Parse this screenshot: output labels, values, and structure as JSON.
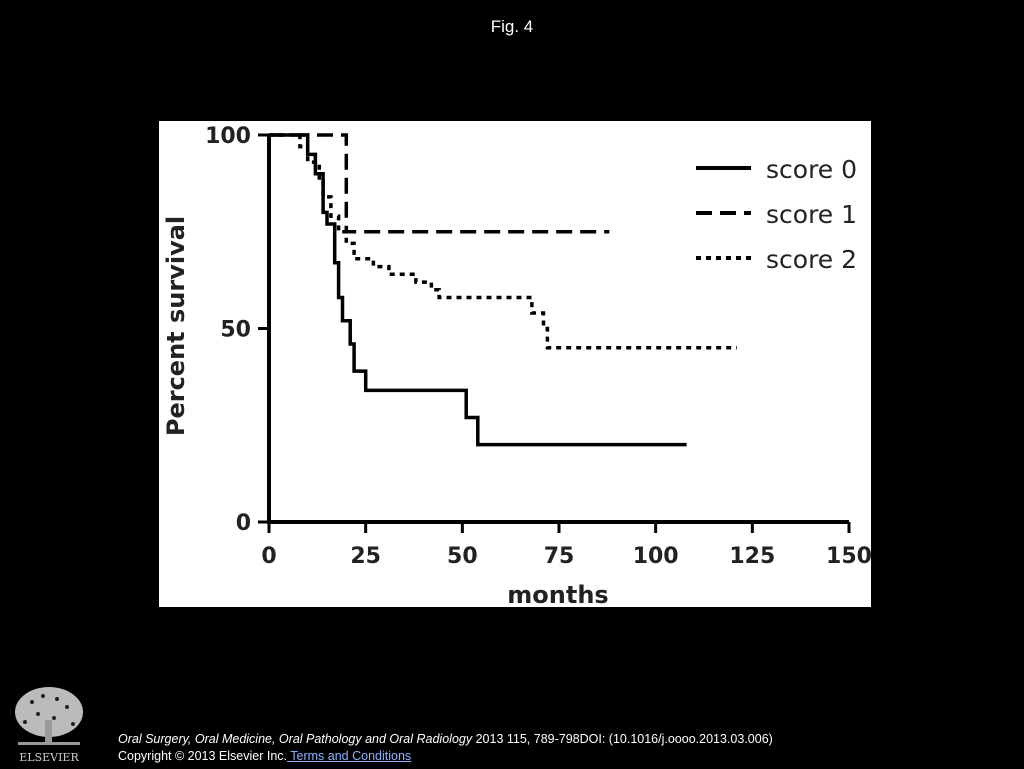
{
  "figure": {
    "title": "Fig. 4"
  },
  "chart_data": {
    "type": "line",
    "title": "",
    "xlabel": "months",
    "ylabel": "Percent survival",
    "xlim": [
      0,
      150
    ],
    "ylim": [
      0,
      100
    ],
    "x_ticks": [
      0,
      25,
      50,
      75,
      100,
      125,
      150
    ],
    "y_ticks": [
      0,
      50,
      100
    ],
    "legend_position": "top-right",
    "grid": false,
    "series": [
      {
        "name": "score 0",
        "style": "solid",
        "points": [
          [
            0,
            100
          ],
          [
            10,
            100
          ],
          [
            10,
            95
          ],
          [
            12,
            95
          ],
          [
            12,
            90
          ],
          [
            14,
            90
          ],
          [
            14,
            80
          ],
          [
            15,
            80
          ],
          [
            15,
            77
          ],
          [
            17,
            77
          ],
          [
            17,
            67
          ],
          [
            18,
            67
          ],
          [
            18,
            58
          ],
          [
            19,
            58
          ],
          [
            19,
            52
          ],
          [
            21,
            52
          ],
          [
            21,
            46
          ],
          [
            22,
            46
          ],
          [
            22,
            39
          ],
          [
            25,
            39
          ],
          [
            25,
            34
          ],
          [
            51,
            34
          ],
          [
            51,
            27
          ],
          [
            54,
            27
          ],
          [
            54,
            20
          ],
          [
            108,
            20
          ]
        ]
      },
      {
        "name": "score 1",
        "style": "dashed",
        "points": [
          [
            0,
            100
          ],
          [
            20,
            100
          ],
          [
            20,
            75
          ],
          [
            88,
            75
          ]
        ]
      },
      {
        "name": "score 2",
        "style": "dotted",
        "points": [
          [
            0,
            100
          ],
          [
            8,
            100
          ],
          [
            8,
            97
          ],
          [
            10,
            97
          ],
          [
            10,
            93
          ],
          [
            13,
            93
          ],
          [
            13,
            88
          ],
          [
            14,
            88
          ],
          [
            14,
            84
          ],
          [
            16,
            84
          ],
          [
            16,
            79
          ],
          [
            18,
            79
          ],
          [
            18,
            75
          ],
          [
            20,
            75
          ],
          [
            20,
            72
          ],
          [
            22,
            72
          ],
          [
            22,
            68
          ],
          [
            27,
            68
          ],
          [
            27,
            66
          ],
          [
            31,
            66
          ],
          [
            31,
            64
          ],
          [
            38,
            64
          ],
          [
            38,
            62
          ],
          [
            42,
            62
          ],
          [
            42,
            60
          ],
          [
            44,
            60
          ],
          [
            44,
            58
          ],
          [
            68,
            58
          ],
          [
            68,
            54
          ],
          [
            71,
            54
          ],
          [
            71,
            50
          ],
          [
            72,
            50
          ],
          [
            72,
            45
          ],
          [
            121,
            45
          ]
        ]
      }
    ]
  },
  "footer": {
    "journal": "Oral Surgery, Oral Medicine, Oral Pathology and Oral Radiology",
    "citation": " 2013 115, 789-798DOI: (10.1016/j.oooo.2013.03.006)",
    "copyright": "Copyright © 2013 Elsevier Inc.",
    "terms_link": " Terms and Conditions",
    "logo_text": "ELSEVIER"
  }
}
